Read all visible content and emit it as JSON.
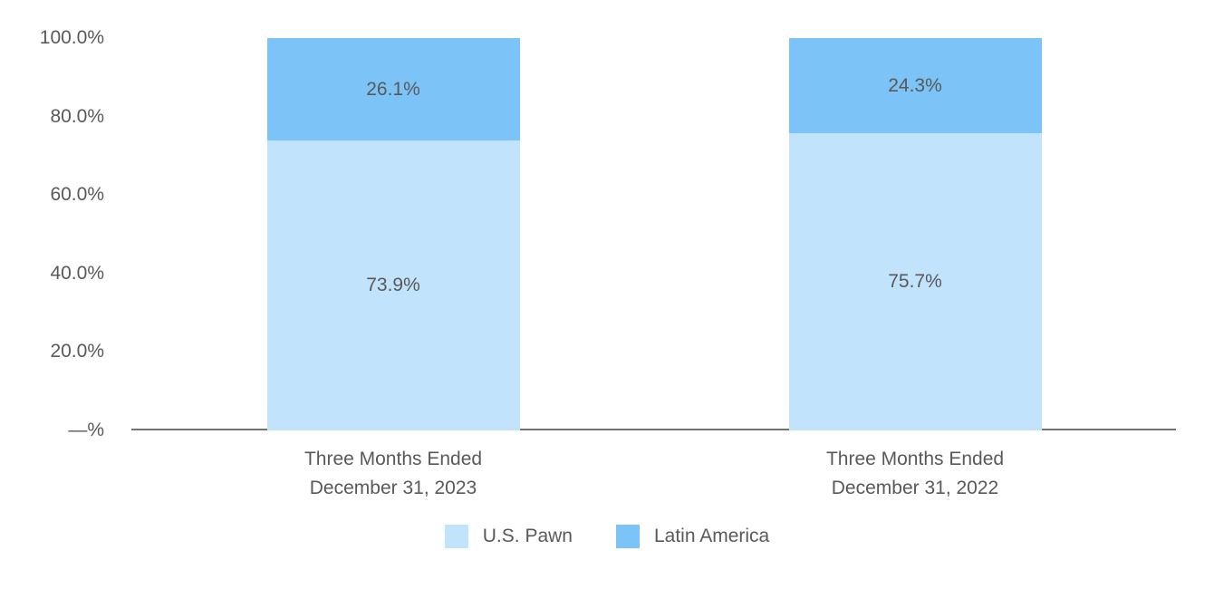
{
  "chart_data": {
    "type": "bar",
    "stacked": true,
    "title": "",
    "xlabel": "",
    "ylabel": "",
    "grid": false,
    "categories": [
      {
        "line1": "Three Months Ended",
        "line2": "December 31, 2023"
      },
      {
        "line1": "Three Months Ended",
        "line2": "December 31, 2022"
      }
    ],
    "series": [
      {
        "name": "U.S. Pawn",
        "color": "#C1E3FB",
        "values": [
          73.9,
          75.7
        ],
        "data_labels": [
          "73.9%",
          "75.7%"
        ]
      },
      {
        "name": "Latin America",
        "color": "#7CC4F7",
        "values": [
          26.1,
          24.3
        ],
        "data_labels": [
          "26.1%",
          "24.3%"
        ]
      }
    ],
    "y_axis": {
      "min": 0,
      "max": 100,
      "ticks": [
        {
          "value": 0,
          "label": "—%"
        },
        {
          "value": 20,
          "label": "20.0%"
        },
        {
          "value": 40,
          "label": "40.0%"
        },
        {
          "value": 60,
          "label": "60.0%"
        },
        {
          "value": 80,
          "label": "80.0%"
        },
        {
          "value": 100,
          "label": "100.0%"
        }
      ]
    },
    "legend": {
      "position": "bottom-center",
      "entries": [
        "U.S. Pawn",
        "Latin America"
      ]
    },
    "colors": {
      "text": "#595959",
      "axis_line": "#737373",
      "background": "#FFFFFF"
    }
  }
}
